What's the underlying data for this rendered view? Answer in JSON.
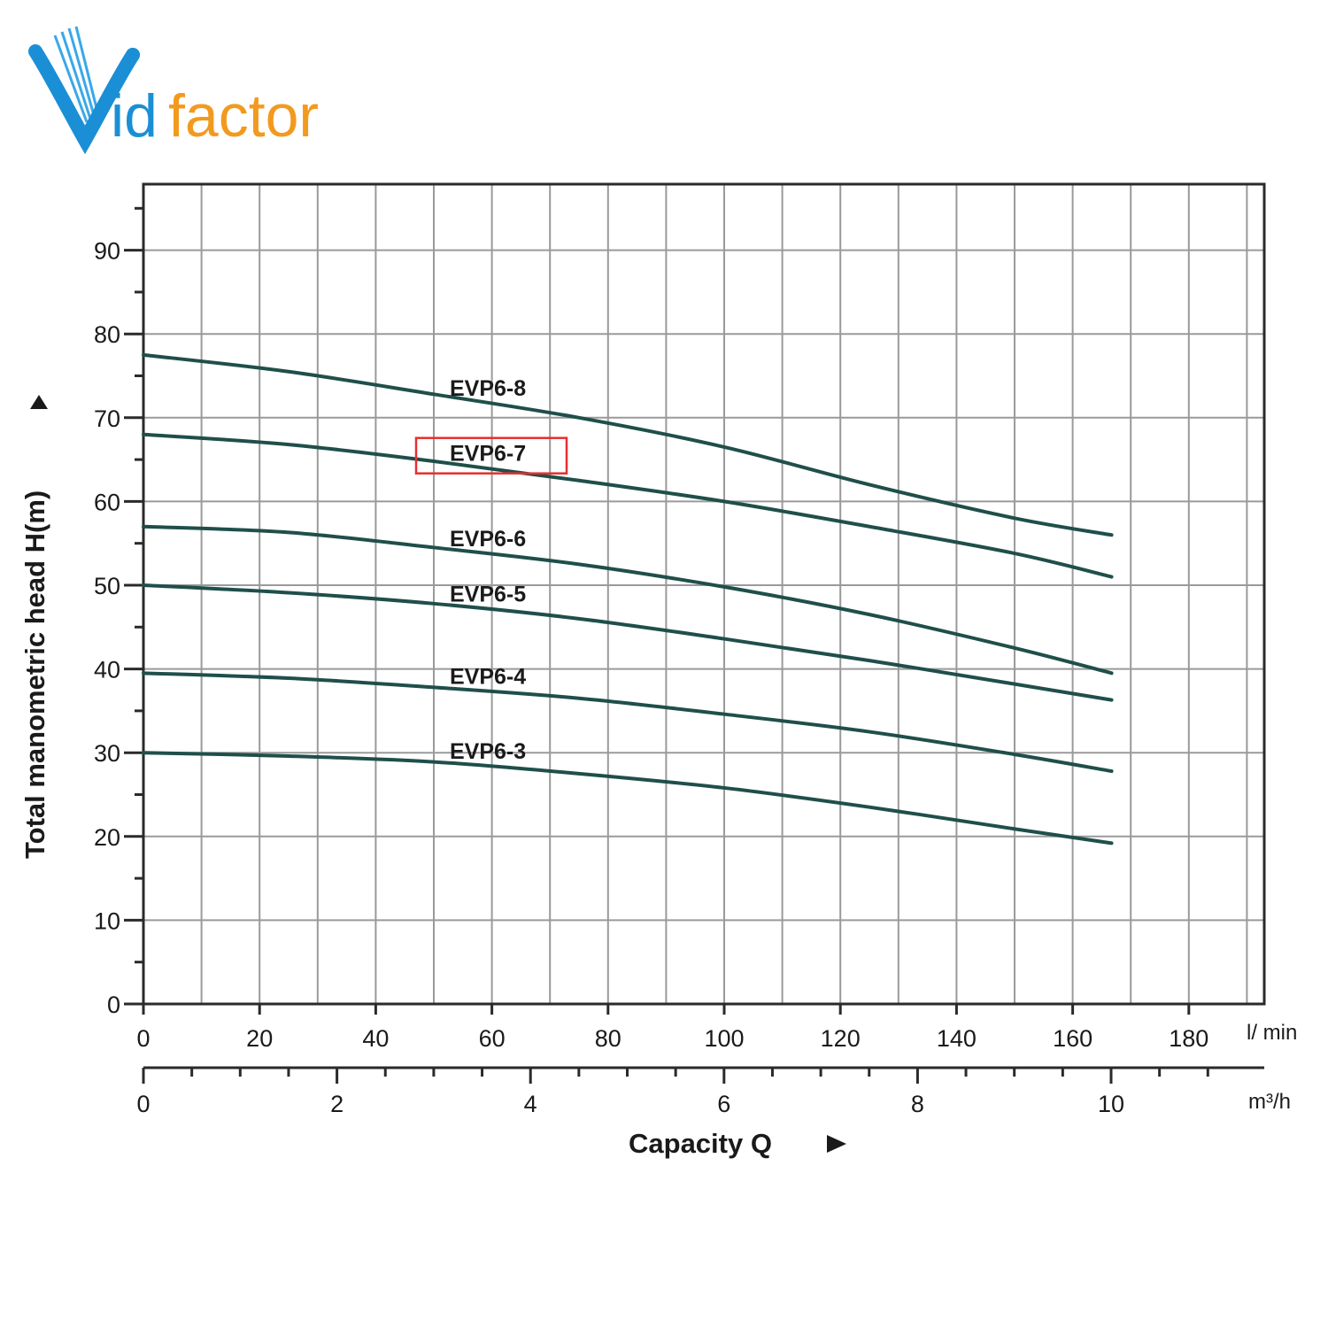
{
  "logo": {
    "text_v": "V",
    "text_id": "id",
    "text_factor": "factor",
    "color_blue": "#1a8fd6",
    "color_orange": "#f29a1f"
  },
  "chart_data": {
    "type": "line",
    "ylabel": "Total manometric head H(m)",
    "xlabel": "Capacity Q",
    "ylim": [
      0,
      97
    ],
    "xlim": [
      0,
      193
    ],
    "y_ticks": [
      0,
      10,
      20,
      30,
      40,
      50,
      60,
      70,
      80,
      90
    ],
    "x_ticks": [
      0,
      20,
      40,
      60,
      80,
      100,
      120,
      140,
      160,
      180
    ],
    "x_unit": "l/ min",
    "x2_ticks": [
      0,
      2,
      4,
      6,
      8,
      10
    ],
    "x2_unit": "m³/h",
    "grid": true,
    "line_color": "#1f4f4a",
    "highlight_color": "#e53030",
    "highlighted_series": "EVP6-7",
    "series": [
      {
        "name": "EVP6-8",
        "x": [
          0,
          25,
          50,
          75,
          100,
          125,
          150,
          166.7
        ],
        "y": [
          77.5,
          75.5,
          72.8,
          70,
          66.5,
          62,
          58,
          56
        ]
      },
      {
        "name": "EVP6-7",
        "x": [
          0,
          25,
          50,
          75,
          100,
          125,
          150,
          166.7
        ],
        "y": [
          68,
          66.8,
          64.8,
          62.5,
          60,
          57,
          53.8,
          51
        ]
      },
      {
        "name": "EVP6-6",
        "x": [
          0,
          25,
          50,
          75,
          100,
          125,
          150,
          166.7
        ],
        "y": [
          57,
          56.3,
          54.5,
          52.5,
          49.8,
          46.5,
          42.5,
          39.5
        ]
      },
      {
        "name": "EVP6-5",
        "x": [
          0,
          25,
          50,
          75,
          100,
          125,
          150,
          166.7
        ],
        "y": [
          50,
          49.1,
          47.8,
          46,
          43.6,
          41,
          38.2,
          36.3
        ]
      },
      {
        "name": "EVP6-4",
        "x": [
          0,
          25,
          50,
          75,
          100,
          125,
          150,
          166.7
        ],
        "y": [
          39.5,
          38.9,
          37.8,
          36.5,
          34.6,
          32.5,
          29.8,
          27.8
        ]
      },
      {
        "name": "EVP6-3",
        "x": [
          0,
          25,
          50,
          75,
          100,
          125,
          150,
          166.7
        ],
        "y": [
          30,
          29.6,
          28.9,
          27.5,
          25.8,
          23.5,
          20.9,
          19.2
        ]
      }
    ]
  }
}
